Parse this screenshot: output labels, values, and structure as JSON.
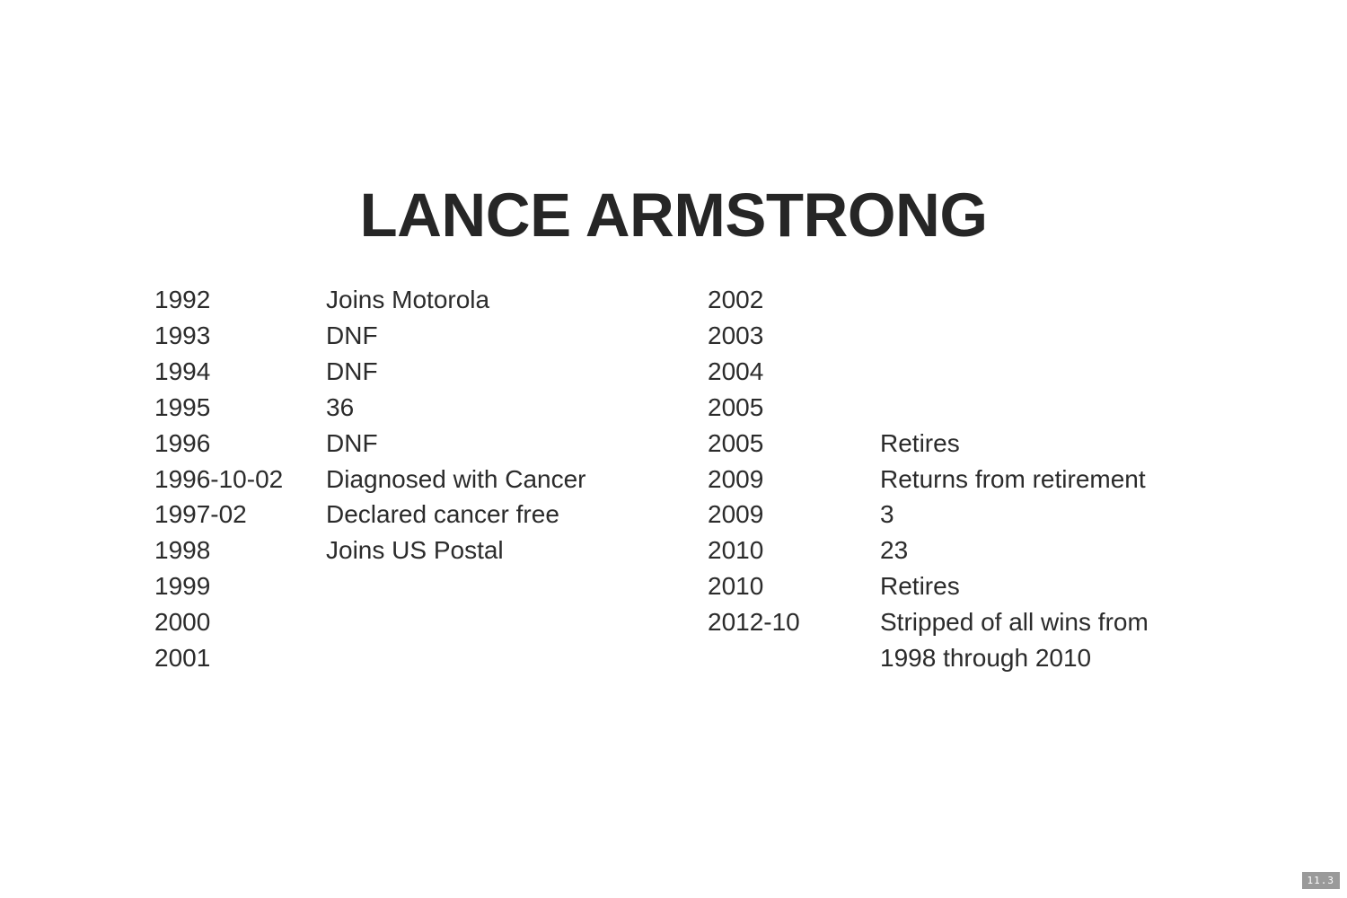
{
  "slide": {
    "title": "LANCE ARMSTRONG",
    "number": "11.3"
  },
  "timeline": {
    "left": [
      {
        "date": "1992",
        "event": "Joins Motorola"
      },
      {
        "date": "1993",
        "event": "DNF"
      },
      {
        "date": "1994",
        "event": "DNF"
      },
      {
        "date": "1995",
        "event": "36"
      },
      {
        "date": "1996",
        "event": "DNF"
      },
      {
        "date": "1996-10-02",
        "event": "Diagnosed with Cancer"
      },
      {
        "date": "1997-02",
        "event": "Declared cancer free"
      },
      {
        "date": "1998",
        "event": "Joins US Postal"
      },
      {
        "date": "1999",
        "event": ""
      },
      {
        "date": "2000",
        "event": ""
      },
      {
        "date": "2001",
        "event": ""
      }
    ],
    "right": [
      {
        "date": "2002",
        "event": ""
      },
      {
        "date": "2003",
        "event": ""
      },
      {
        "date": "2004",
        "event": ""
      },
      {
        "date": "2005",
        "event": ""
      },
      {
        "date": "2005",
        "event": "Retires"
      },
      {
        "date": "2009",
        "event": "Returns from retirement"
      },
      {
        "date": "2009",
        "event": "3"
      },
      {
        "date": "2010",
        "event": "23"
      },
      {
        "date": "2010",
        "event": "Retires"
      },
      {
        "date": "2012-10",
        "event": "Stripped of all wins from 1998 through 2010"
      }
    ]
  }
}
